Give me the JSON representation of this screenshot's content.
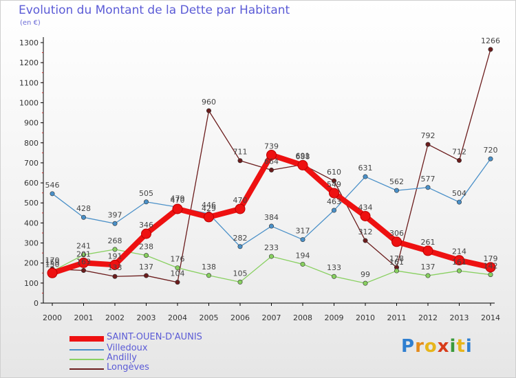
{
  "title": "Evolution du Montant de la Dette par Habitant",
  "subtitle": "(en €)",
  "logo": {
    "text": "Proxiti"
  },
  "chart_data": {
    "type": "line",
    "x": [
      "2000",
      "2001",
      "2002",
      "2003",
      "2004",
      "2005",
      "2006",
      "2007",
      "2008",
      "2009",
      "2010",
      "2011",
      "2012",
      "2013",
      "2014"
    ],
    "ylim": [
      0,
      1300
    ],
    "yticks": [
      0,
      100,
      200,
      300,
      400,
      500,
      600,
      700,
      800,
      900,
      1000,
      1100,
      1200,
      1300
    ],
    "grid": false,
    "legend_position": "bottom-left",
    "series": [
      {
        "name": "SAINT-OUEN-D'AUNIS",
        "color": "#ee1111",
        "values": [
          150,
          201,
          191,
          346,
          470,
          429,
          470,
          739,
          688,
          549,
          434,
          306,
          261,
          214,
          179
        ],
        "labels": [
          "150",
          "201",
          "191",
          "346",
          "470",
          "429",
          "470",
          "739",
          "688",
          "549",
          "434",
          "306",
          "261",
          "214",
          "179"
        ]
      },
      {
        "name": "Villedoux",
        "color": "#4a90c8",
        "values": [
          546,
          428,
          397,
          505,
          479,
          446,
          282,
          384,
          317,
          463,
          631,
          562,
          577,
          504,
          720
        ],
        "labels": [
          "546",
          "428",
          "397",
          "505",
          "479",
          "446",
          "282",
          "384",
          "317",
          "463",
          "631",
          "562",
          "577",
          "504",
          "720"
        ]
      },
      {
        "name": "Andilly",
        "color": "#88d060",
        "values": [
          159,
          241,
          268,
          238,
          176,
          138,
          105,
          233,
          194,
          133,
          99,
          161,
          137,
          161,
          142
        ],
        "labels": [
          "159",
          "241",
          "268",
          "238",
          "176",
          "138",
          "105",
          "233",
          "194",
          "133",
          "99",
          "161",
          "137",
          "161",
          "142"
        ]
      },
      {
        "name": "Longèves",
        "color": "#6b1c1c",
        "values": [
          170,
          163,
          133,
          137,
          104,
          960,
          711,
          664,
          691,
          610,
          312,
          178,
          792,
          712,
          1266
        ],
        "labels": [
          "170",
          "163",
          "133",
          "137",
          "104",
          "960",
          "711",
          "664",
          "691",
          "610",
          "312",
          "178",
          "792",
          "712",
          "1266"
        ]
      }
    ]
  }
}
